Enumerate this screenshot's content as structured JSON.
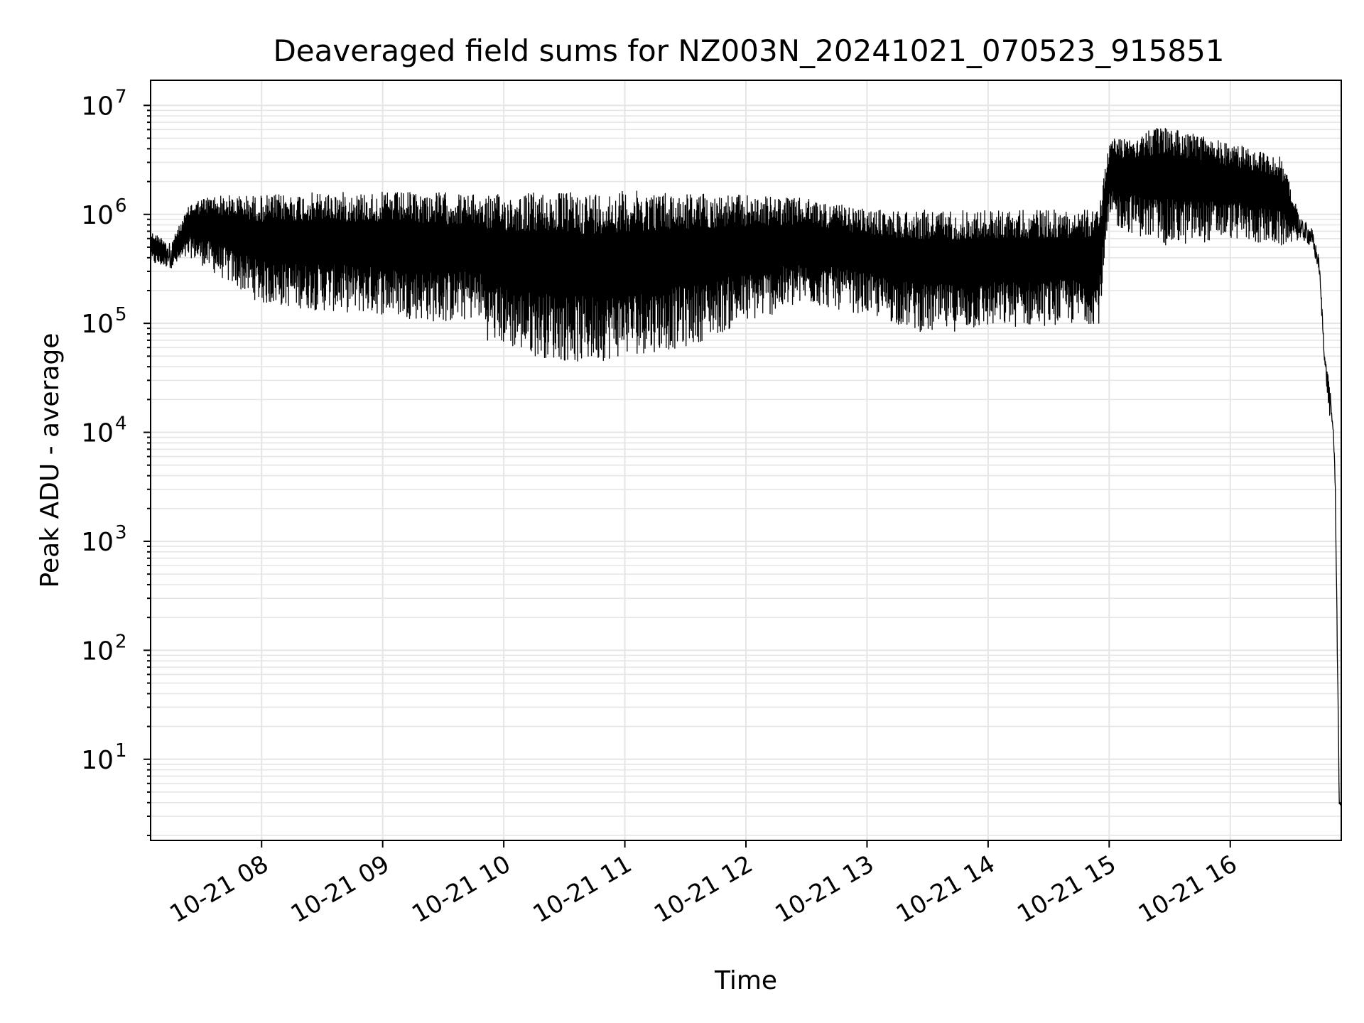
{
  "chart_data": {
    "type": "line",
    "title": "Deaveraged field sums for NZ003N_20241021_070523_915851",
    "xlabel": "Time",
    "ylabel": "Peak ADU - average",
    "x_tick_labels": [
      "10-21 08",
      "10-21 09",
      "10-21 10",
      "10-21 11",
      "10-21 12",
      "10-21 13",
      "10-21 14",
      "10-21 15",
      "10-21 16"
    ],
    "y_ticks": [
      {
        "base": "10",
        "exp": "1"
      },
      {
        "base": "10",
        "exp": "2"
      },
      {
        "base": "10",
        "exp": "3"
      },
      {
        "base": "10",
        "exp": "4"
      },
      {
        "base": "10",
        "exp": "5"
      },
      {
        "base": "10",
        "exp": "6"
      },
      {
        "base": "10",
        "exp": "7"
      }
    ],
    "x_range": [
      "2024-10-21T07:05",
      "2024-10-21T16:55"
    ],
    "y_scale": "log",
    "y_range": [
      1.8,
      17000000.0
    ],
    "grid": true,
    "line_color": "#000000",
    "grid_color": "#e5e5e5",
    "series": [
      {
        "note_hidden": "",
        "envelope": [
          {
            "t": "2024-10-21T07:05",
            "low": 350000.0,
            "high": 700000.0
          },
          {
            "t": "2024-10-21T07:15",
            "low": 320000.0,
            "high": 550000.0
          },
          {
            "t": "2024-10-21T07:25",
            "low": 400000.0,
            "high": 1300000.0
          },
          {
            "t": "2024-10-21T07:35",
            "low": 300000.0,
            "high": 1500000.0
          },
          {
            "t": "2024-10-21T08:00",
            "low": 150000.0,
            "high": 1500000.0
          },
          {
            "t": "2024-10-21T08:30",
            "low": 130000.0,
            "high": 1600000.0
          },
          {
            "t": "2024-10-21T09:00",
            "low": 120000.0,
            "high": 1600000.0
          },
          {
            "t": "2024-10-21T09:30",
            "low": 100000.0,
            "high": 1600000.0
          },
          {
            "t": "2024-10-21T09:48",
            "low": 110000.0,
            "high": 1500000.0
          },
          {
            "t": "2024-10-21T09:52",
            "low": 70000.0,
            "high": 1500000.0
          },
          {
            "t": "2024-10-21T10:15",
            "low": 50000.0,
            "high": 1600000.0
          },
          {
            "t": "2024-10-21T10:40",
            "low": 42000.0,
            "high": 1600000.0
          },
          {
            "t": "2024-10-21T11:00",
            "low": 50000.0,
            "high": 1650000.0
          },
          {
            "t": "2024-10-21T11:30",
            "low": 60000.0,
            "high": 1600000.0
          },
          {
            "t": "2024-10-21T12:00",
            "low": 100000.0,
            "high": 1500000.0
          },
          {
            "t": "2024-10-21T12:30",
            "low": 150000.0,
            "high": 1400000.0
          },
          {
            "t": "2024-10-21T13:00",
            "low": 120000.0,
            "high": 1100000.0
          },
          {
            "t": "2024-10-21T13:30",
            "low": 80000.0,
            "high": 1100000.0
          },
          {
            "t": "2024-10-21T14:00",
            "low": 90000.0,
            "high": 1100000.0
          },
          {
            "t": "2024-10-21T14:55",
            "low": 100000.0,
            "high": 1100000.0
          },
          {
            "t": "2024-10-21T15:00",
            "low": 800000.0,
            "high": 5000000.0
          },
          {
            "t": "2024-10-21T15:30",
            "low": 500000.0,
            "high": 6500000.0
          },
          {
            "t": "2024-10-21T16:00",
            "low": 600000.0,
            "high": 4500000.0
          },
          {
            "t": "2024-10-21T16:25",
            "low": 500000.0,
            "high": 3500000.0
          },
          {
            "t": "2024-10-21T16:35",
            "low": 600000.0,
            "high": 900000.0
          },
          {
            "t": "2024-10-21T16:40",
            "low": 500000.0,
            "high": 800000.0
          },
          {
            "t": "2024-10-21T16:44",
            "low": 300000.0,
            "high": 400000.0
          },
          {
            "t": "2024-10-21T16:47",
            "low": 35000.0,
            "high": 50000.0
          },
          {
            "t": "2024-10-21T16:49",
            "low": 15000.0,
            "high": 30000.0
          },
          {
            "t": "2024-10-21T16:51",
            "low": 10000.0,
            "high": 12000.0
          },
          {
            "t": "2024-10-21T16:52",
            "low": 3000.0,
            "high": 4000.0
          },
          {
            "t": "2024-10-21T16:53",
            "low": 100,
            "high": 170
          },
          {
            "t": "2024-10-21T16:54",
            "low": 3.8,
            "high": 4.2
          },
          {
            "t": "2024-10-21T16:55",
            "low": 3.8,
            "high": 4.2
          }
        ]
      }
    ]
  }
}
